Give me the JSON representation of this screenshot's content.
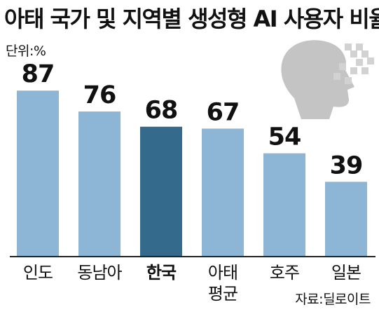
{
  "title": "아태 국가 및 지역별 생성형 AI 사용자 비율",
  "unit": "단위:%",
  "source": "자료:딜로이트",
  "colors": {
    "bar": "#8cb5d6",
    "highlight": "#346b8c",
    "axis": "#222222",
    "icon_head": "#c4c4c4",
    "icon_pixels": "#d2d2d2"
  },
  "icon": {
    "name": "ai-head-pixel-icon"
  },
  "chart_data": {
    "type": "bar",
    "title": "아태 국가 및 지역별 생성형 AI 사용자 비율",
    "ylabel": "",
    "xlabel": "",
    "categories": [
      "인도",
      "동남아",
      "한국",
      "아태\n평균",
      "호주",
      "일본"
    ],
    "values": [
      87,
      76,
      68,
      67,
      54,
      39
    ],
    "highlight_index": 2,
    "ylim": [
      0,
      100
    ],
    "data_labels": true,
    "grid": false
  }
}
